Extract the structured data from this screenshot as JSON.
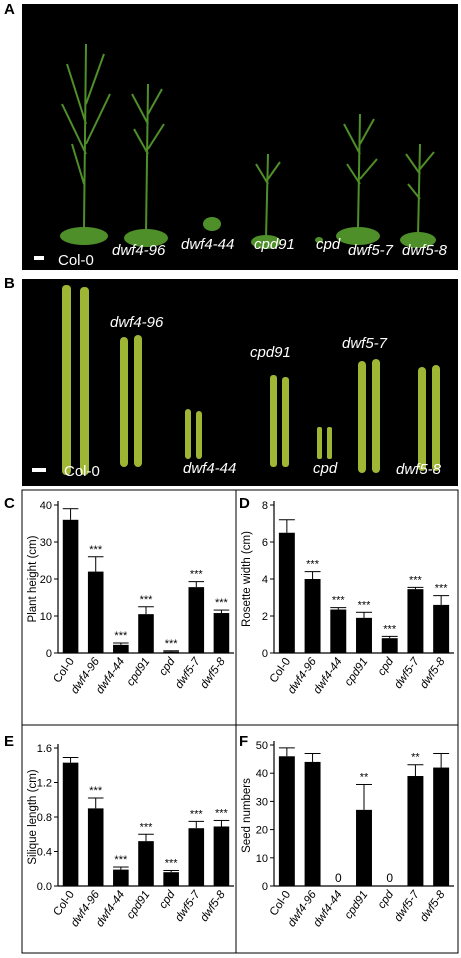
{
  "panels": {
    "A": {
      "label": "A",
      "genotypes": [
        "Col-0",
        "dwf4-96",
        "dwf4-44",
        "cpd91",
        "cpd",
        "dwf5-7",
        "dwf5-8"
      ]
    },
    "B": {
      "label": "B",
      "genotypes": [
        "Col-0",
        "dwf4-96",
        "dwf4-44",
        "cpd91",
        "cpd",
        "dwf5-7",
        "dwf5-8"
      ]
    }
  },
  "colors": {
    "bar": "#000000",
    "photo_bg": "#000000",
    "photo_text": "#ffffff",
    "plant": "#4f8f2a",
    "silique": "#9fb534"
  },
  "chart_data": [
    {
      "panel": "C",
      "type": "bar",
      "categories": [
        "Col-0",
        "dwf4-96",
        "dwf4-44",
        "cpd91",
        "cpd",
        "dwf5-7",
        "dwf5-8"
      ],
      "values": [
        36,
        22,
        2.2,
        10.5,
        0.4,
        17.8,
        10.8
      ],
      "errors": [
        3,
        4,
        0.5,
        2,
        0.2,
        1.5,
        0.8
      ],
      "annotations": [
        "",
        "***",
        "***",
        "***",
        "***",
        "***",
        "***"
      ],
      "ylabel": "Plant height (cm)",
      "ylim": [
        0,
        40
      ],
      "yticks": [
        "0",
        "10",
        "20",
        "30",
        "40"
      ],
      "ytick_values": [
        0,
        10,
        20,
        30,
        40
      ]
    },
    {
      "panel": "D",
      "type": "bar",
      "categories": [
        "Col-0",
        "dwf4-96",
        "dwf4-44",
        "cpd91",
        "cpd",
        "dwf5-7",
        "dwf5-8"
      ],
      "values": [
        6.5,
        4.0,
        2.35,
        1.9,
        0.8,
        3.45,
        2.6
      ],
      "errors": [
        0.7,
        0.4,
        0.1,
        0.3,
        0.1,
        0.1,
        0.5
      ],
      "annotations": [
        "",
        "***",
        "***",
        "***",
        "***",
        "***",
        "***"
      ],
      "ylabel": "Rosette width (cm)",
      "ylim": [
        0,
        8
      ],
      "yticks": [
        "0",
        "2",
        "4",
        "6",
        "8"
      ],
      "ytick_values": [
        0,
        2,
        4,
        6,
        8
      ]
    },
    {
      "panel": "E",
      "type": "bar",
      "categories": [
        "Col-0",
        "dwf4-96",
        "dwf4-44",
        "cpd91",
        "cpd",
        "dwf5-7",
        "dwf5-8"
      ],
      "values": [
        1.43,
        0.9,
        0.19,
        0.52,
        0.16,
        0.67,
        0.69
      ],
      "errors": [
        0.06,
        0.12,
        0.03,
        0.08,
        0.02,
        0.08,
        0.07
      ],
      "annotations": [
        "",
        "***",
        "***",
        "***",
        "***",
        "***",
        "***"
      ],
      "ylabel": "Silique length (cm)",
      "ylim": [
        0,
        1.6
      ],
      "yticks": [
        "0.0",
        "0.4",
        "0.8",
        "1.2",
        "1.6"
      ],
      "ytick_values": [
        0,
        0.4,
        0.8,
        1.2,
        1.6
      ]
    },
    {
      "panel": "F",
      "type": "bar",
      "categories": [
        "Col-0",
        "dwf4-96",
        "dwf4-44",
        "cpd91",
        "cpd",
        "dwf5-7",
        "dwf5-8"
      ],
      "values": [
        46,
        44,
        0,
        27,
        0,
        39,
        42
      ],
      "errors": [
        3,
        3,
        0,
        9,
        0,
        4,
        5
      ],
      "annotations": [
        "",
        "",
        "0",
        "**",
        "0",
        "**",
        ""
      ],
      "ylabel": "Seed numbers",
      "ylim": [
        0,
        50
      ],
      "yticks": [
        "0",
        "10",
        "20",
        "30",
        "40",
        "50"
      ],
      "ytick_values": [
        0,
        10,
        20,
        30,
        40,
        50
      ]
    }
  ]
}
